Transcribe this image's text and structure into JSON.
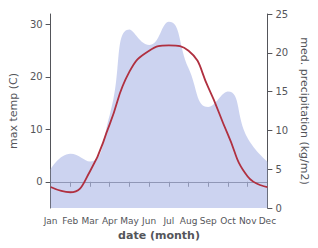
{
  "chart_data": {
    "type": "line",
    "categories": [
      "Jan",
      "Feb",
      "Mar",
      "Apr",
      "May",
      "Jun",
      "Jul",
      "Aug",
      "Sep",
      "Oct",
      "Nov",
      "Dec"
    ],
    "xlabel": "date (month)",
    "ylabel": "max temp (C)",
    "y2label": "med. precipitation (kg/m2)",
    "series": [
      {
        "type": "area",
        "axis": "y2",
        "color": "#b0bce8",
        "values": [
          5,
          7,
          6,
          12,
          23,
          21,
          24,
          18,
          13,
          15,
          9,
          6
        ]
      },
      {
        "type": "line",
        "color": "#b03040",
        "values": [
          -1,
          -2,
          2,
          11,
          21,
          25,
          26,
          25,
          18,
          9,
          1,
          -1
        ]
      }
    ],
    "ylim": [
      -5,
      32
    ],
    "yticks": [
      0,
      10,
      20,
      30
    ],
    "y2lim": [
      0,
      25
    ],
    "y2ticks": [
      0,
      5,
      10,
      15,
      20,
      25
    ],
    "grid": false
  }
}
